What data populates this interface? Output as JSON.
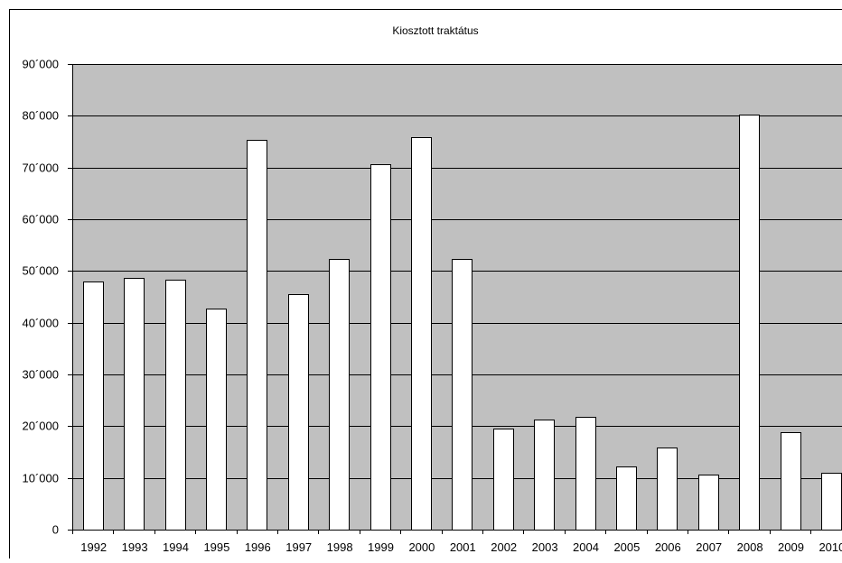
{
  "chart_data": {
    "type": "bar",
    "title": "Kiosztott traktátus",
    "xlabel": "",
    "ylabel": "",
    "ylim": [
      0,
      90000
    ],
    "yticks": [
      0,
      10000,
      20000,
      30000,
      40000,
      50000,
      60000,
      70000,
      80000,
      90000
    ],
    "ytick_labels": [
      "0",
      "10´000",
      "20´000",
      "30´000",
      "40´000",
      "50´000",
      "60´000",
      "70´000",
      "80´000",
      "90´000"
    ],
    "categories": [
      "1992",
      "1993",
      "1994",
      "1995",
      "1996",
      "1997",
      "1998",
      "1999",
      "2000",
      "2001",
      "2002",
      "2003",
      "2004",
      "2005",
      "2006",
      "2007",
      "2008",
      "2009",
      "2010"
    ],
    "values": [
      48000,
      48700,
      48300,
      42700,
      75300,
      45600,
      52400,
      70600,
      75900,
      52400,
      19500,
      21300,
      21800,
      12200,
      15900,
      10700,
      80200,
      18800,
      11000
    ],
    "grid": true,
    "legend": "none",
    "colors": {
      "plot_background": "#c0c0c0",
      "bar_fill": "#ffffff",
      "bar_stroke": "#000000",
      "grid": "#000000"
    }
  }
}
